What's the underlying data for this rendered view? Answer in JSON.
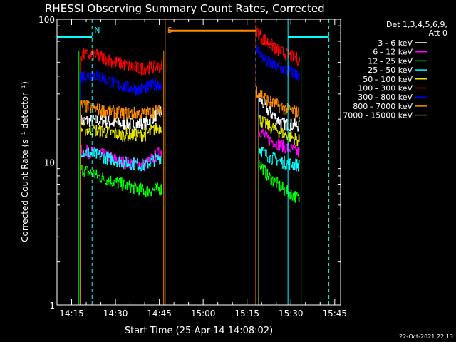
{
  "chart_data": {
    "type": "line",
    "title": "RHESSI Observing Summary Count Rates, Corrected",
    "xlabel": "Start Time (25-Apr-14 14:08:02)",
    "ylabel": "Corrected Count Rate (s⁻¹ detector⁻¹)",
    "yscale": "log",
    "ylim": [
      1,
      100
    ],
    "xlim": [
      "14:10",
      "15:47"
    ],
    "xticks": [
      "14:15",
      "14:30",
      "14:45",
      "15:00",
      "15:15",
      "15:30",
      "15:45"
    ],
    "yticks": [
      "1",
      "10",
      "100"
    ],
    "timestamp": "22-Oct-2021 22:13",
    "legend": {
      "position": "top-right",
      "header": [
        "Det 1,3,4,5,6,9,",
        "Att 0"
      ],
      "entries": [
        {
          "label": "3 - 6 keV",
          "color": "#ffffff"
        },
        {
          "label": "6 - 12 keV",
          "color": "#ff00ff"
        },
        {
          "label": "12 - 25 keV",
          "color": "#00ff00"
        },
        {
          "label": "25 - 50 keV",
          "color": "#00ffff"
        },
        {
          "label": "50 - 100 keV",
          "color": "#e6e600"
        },
        {
          "label": "100 - 300 keV",
          "color": "#ff0000"
        },
        {
          "label": "300 - 800 keV",
          "color": "#0000ff"
        },
        {
          "label": "800 - 7000 keV",
          "color": "#ff8c00"
        },
        {
          "label": "7000 - 15000 keV",
          "color": "#6b8e23"
        }
      ]
    },
    "series": [
      {
        "name": "3 - 6 keV",
        "color": "#ffffff",
        "segments": [
          {
            "t": [
              "14:18",
              "14:25",
              "14:32",
              "14:40",
              "14:46"
            ],
            "v": [
              19.5,
              19.5,
              18.5,
              18.5,
              23
            ]
          },
          {
            "t": [
              "15:19",
              "15:22",
              "15:27",
              "15:33"
            ],
            "v": [
              28,
              23,
              18.5,
              18
            ]
          }
        ]
      },
      {
        "name": "6 - 12 keV",
        "color": "#ff00ff",
        "segments": [
          {
            "t": [
              "14:18",
              "14:24",
              "14:32",
              "14:40",
              "14:46"
            ],
            "v": [
              12,
              11.5,
              10,
              9.5,
              12
            ]
          },
          {
            "t": [
              "15:19",
              "15:22",
              "15:27",
              "15:33"
            ],
            "v": [
              17,
              14.5,
              13,
              11.5
            ]
          }
        ]
      },
      {
        "name": "12 - 25 keV",
        "color": "#00ff00",
        "segments": [
          {
            "t": [
              "14:18",
              "14:25",
              "14:32",
              "14:40",
              "14:46"
            ],
            "v": [
              9,
              7.8,
              7,
              6.3,
              6.5
            ]
          },
          {
            "t": [
              "15:19",
              "15:22",
              "15:27",
              "15:33"
            ],
            "v": [
              10,
              8,
              6.5,
              5.5
            ]
          }
        ]
      },
      {
        "name": "25 - 50 keV",
        "color": "#00ffff",
        "segments": [
          {
            "t": [
              "14:18",
              "14:25",
              "14:32",
              "14:40",
              "14:46"
            ],
            "v": [
              12,
              11,
              10,
              9.5,
              11
            ]
          },
          {
            "t": [
              "15:19",
              "15:22",
              "15:27",
              "15:33"
            ],
            "v": [
              12.5,
              11,
              10,
              9.5
            ]
          }
        ]
      },
      {
        "name": "50 - 100 keV",
        "color": "#e6e600",
        "segments": [
          {
            "t": [
              "14:18",
              "14:25",
              "14:32",
              "14:40",
              "14:46"
            ],
            "v": [
              17,
              16.5,
              15.5,
              15.5,
              18
            ]
          },
          {
            "t": [
              "15:19",
              "15:22",
              "15:27",
              "15:33"
            ],
            "v": [
              20,
              18,
              16,
              14
            ]
          }
        ]
      },
      {
        "name": "100 - 300 keV",
        "color": "#ff0000",
        "segments": [
          {
            "t": [
              "14:18",
              "14:23",
              "14:30",
              "14:38",
              "14:46"
            ],
            "v": [
              56,
              56,
              50,
              45,
              47
            ]
          },
          {
            "t": [
              "15:18",
              "15:21",
              "15:25",
              "15:30",
              "15:33"
            ],
            "v": [
              84,
              72,
              61,
              55,
              52
            ]
          }
        ]
      },
      {
        "name": "300 - 800 keV",
        "color": "#0000ff",
        "segments": [
          {
            "t": [
              "14:18",
              "14:23",
              "14:30",
              "14:38",
              "14:46"
            ],
            "v": [
              40,
              41,
              35,
              32,
              36
            ]
          },
          {
            "t": [
              "15:18",
              "15:21",
              "15:25",
              "15:30",
              "15:33"
            ],
            "v": [
              62,
              52,
              46,
              43,
              40
            ]
          }
        ]
      },
      {
        "name": "800 - 7000 keV",
        "color": "#ff8c00",
        "segments": [
          {
            "t": [
              "14:18",
              "14:25",
              "14:32",
              "14:40",
              "14:46"
            ],
            "v": [
              25,
              23,
              22,
              22,
              23
            ]
          },
          {
            "t": [
              "15:18",
              "15:22",
              "15:27",
              "15:33"
            ],
            "v": [
              32,
              27,
              24,
              22
            ]
          }
        ]
      }
    ],
    "spike_markers": [
      {
        "t": "14:17.5",
        "color": "#00ff00"
      },
      {
        "t": "14:46.5",
        "color": "#ff8c00"
      },
      {
        "t": "15:33.5",
        "color": "#00ff00"
      }
    ],
    "annotations": {
      "night_bars": [
        {
          "from": "14:10",
          "to": "14:22",
          "value": 75,
          "color": "#00ffff"
        },
        {
          "from": "15:29",
          "to": "15:43",
          "value": 75,
          "color": "#00ffff"
        }
      ],
      "saa_bar": {
        "from": "14:48",
        "to": "15:18",
        "value": 83,
        "color": "#ff8c00"
      },
      "small_bars": [
        {
          "from": "15:20",
          "to": "15:25",
          "value": 67,
          "color": "#ff0000"
        }
      ],
      "vlines": [
        {
          "t": "14:10",
          "color": "#00ffff",
          "style": "solid"
        },
        {
          "t": "14:22",
          "color": "#00ffff",
          "style": "dashed",
          "label": "N"
        },
        {
          "t": "14:47",
          "color": "#ff8c00",
          "style": "solid",
          "label": "S"
        },
        {
          "t": "15:18",
          "color": "#ff8c00",
          "style": "dashed"
        },
        {
          "t": "15:29",
          "color": "#00ffff",
          "style": "solid"
        },
        {
          "t": "15:43",
          "color": "#00ffff",
          "style": "dashed"
        }
      ]
    }
  }
}
